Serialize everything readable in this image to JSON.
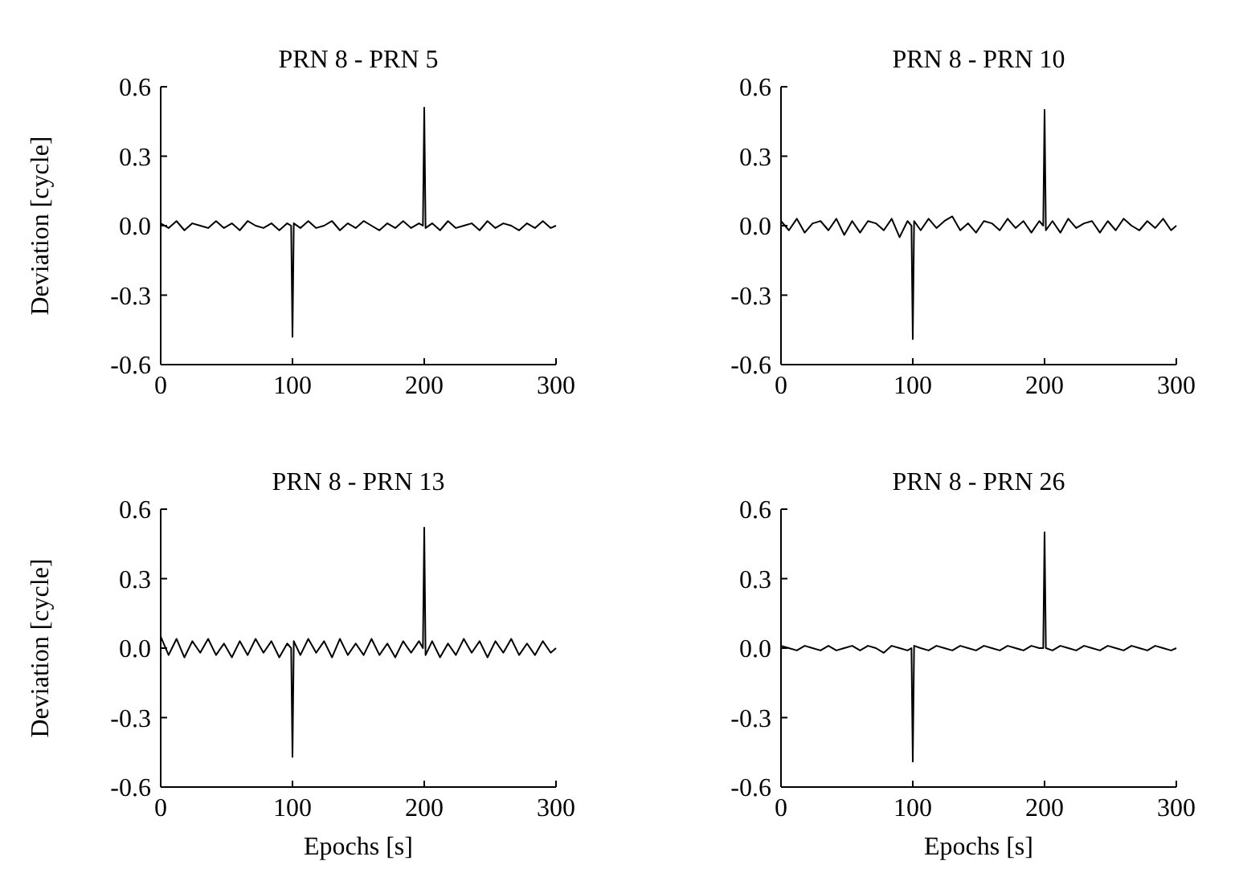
{
  "chart_data": [
    {
      "type": "line",
      "title": "PRN 8 - PRN 5",
      "ylabel": "Deviation [cycle]",
      "xlim": [
        0,
        300
      ],
      "xticks": [
        0,
        100,
        200,
        300
      ],
      "ylim": [
        -0.6,
        0.6
      ],
      "yticks": [
        {
          "value": -0.6,
          "label": "-0.6"
        },
        {
          "value": -0.3,
          "label": "-0.3"
        },
        {
          "value": 0,
          "label": "0.0"
        },
        {
          "value": 0.3,
          "label": "0.3"
        },
        {
          "value": 0.6,
          "label": "0.6"
        }
      ],
      "marker": "none",
      "line_style": "solid",
      "x": [
        0,
        6,
        12,
        18,
        24,
        30,
        36,
        42,
        48,
        54,
        60,
        66,
        72,
        78,
        84,
        90,
        96,
        99,
        100,
        101,
        106,
        112,
        118,
        124,
        130,
        136,
        142,
        148,
        154,
        160,
        166,
        172,
        178,
        184,
        190,
        196,
        199,
        200,
        201,
        206,
        212,
        218,
        224,
        230,
        236,
        242,
        248,
        254,
        260,
        266,
        272,
        278,
        284,
        290,
        296,
        300
      ],
      "series": [
        {
          "color": "#000000",
          "values": [
            0.01,
            -0.01,
            0.02,
            -0.02,
            0.01,
            0.0,
            -0.01,
            0.02,
            -0.01,
            0.01,
            -0.02,
            0.02,
            0.0,
            -0.01,
            0.01,
            -0.02,
            0.01,
            0.0,
            -0.48,
            0.01,
            -0.01,
            0.02,
            -0.01,
            0.0,
            0.02,
            -0.02,
            0.01,
            -0.01,
            0.02,
            0.0,
            -0.02,
            0.01,
            -0.01,
            0.02,
            -0.01,
            0.01,
            0.0,
            0.51,
            -0.01,
            0.01,
            -0.02,
            0.02,
            -0.01,
            0.0,
            0.01,
            -0.02,
            0.02,
            -0.01,
            0.01,
            0.0,
            -0.02,
            0.01,
            -0.01,
            0.02,
            -0.01,
            0.0
          ]
        }
      ]
    },
    {
      "type": "line",
      "title": "PRN 8 - PRN 10",
      "xlim": [
        0,
        300
      ],
      "xticks": [
        0,
        100,
        200,
        300
      ],
      "ylim": [
        -0.6,
        0.6
      ],
      "yticks": [
        {
          "value": -0.6,
          "label": "-0.6"
        },
        {
          "value": -0.3,
          "label": "-0.3"
        },
        {
          "value": 0,
          "label": "0.0"
        },
        {
          "value": 0.3,
          "label": "0.3"
        },
        {
          "value": 0.6,
          "label": "0.6"
        }
      ],
      "marker": "none",
      "line_style": "solid",
      "x": [
        0,
        6,
        12,
        18,
        24,
        30,
        36,
        42,
        48,
        54,
        60,
        66,
        72,
        78,
        84,
        90,
        96,
        99,
        100,
        101,
        106,
        112,
        118,
        124,
        130,
        136,
        142,
        148,
        154,
        160,
        166,
        172,
        178,
        184,
        190,
        196,
        199,
        200,
        201,
        206,
        212,
        218,
        224,
        230,
        236,
        242,
        248,
        254,
        260,
        266,
        272,
        278,
        284,
        290,
        296,
        300
      ],
      "series": [
        {
          "color": "#000000",
          "values": [
            0.02,
            -0.02,
            0.03,
            -0.03,
            0.01,
            0.02,
            -0.02,
            0.03,
            -0.04,
            0.02,
            -0.03,
            0.02,
            0.01,
            -0.02,
            0.03,
            -0.05,
            0.02,
            0.0,
            -0.49,
            0.02,
            -0.02,
            0.03,
            -0.01,
            0.02,
            0.04,
            -0.02,
            0.01,
            -0.03,
            0.02,
            0.01,
            -0.02,
            0.03,
            -0.01,
            0.02,
            -0.03,
            0.02,
            0.0,
            0.5,
            -0.02,
            0.02,
            -0.03,
            0.03,
            -0.01,
            0.01,
            0.02,
            -0.03,
            0.02,
            -0.02,
            0.03,
            0.0,
            -0.02,
            0.02,
            -0.01,
            0.03,
            -0.02,
            0.0
          ]
        }
      ]
    },
    {
      "type": "line",
      "title": "PRN 8 - PRN 13",
      "xlabel": "Epochs [s]",
      "ylabel": "Deviation [cycle]",
      "xlim": [
        0,
        300
      ],
      "xticks": [
        0,
        100,
        200,
        300
      ],
      "ylim": [
        -0.6,
        0.6
      ],
      "yticks": [
        {
          "value": -0.6,
          "label": "-0.6"
        },
        {
          "value": -0.3,
          "label": "-0.3"
        },
        {
          "value": 0,
          "label": "0.0"
        },
        {
          "value": 0.3,
          "label": "0.3"
        },
        {
          "value": 0.6,
          "label": "0.6"
        }
      ],
      "marker": "none",
      "line_style": "solid",
      "x": [
        0,
        6,
        12,
        18,
        24,
        30,
        36,
        42,
        48,
        54,
        60,
        66,
        72,
        78,
        84,
        90,
        96,
        99,
        100,
        101,
        106,
        112,
        118,
        124,
        130,
        136,
        142,
        148,
        154,
        160,
        166,
        172,
        178,
        184,
        190,
        196,
        199,
        200,
        201,
        206,
        212,
        218,
        224,
        230,
        236,
        242,
        248,
        254,
        260,
        266,
        272,
        278,
        284,
        290,
        296,
        300
      ],
      "series": [
        {
          "color": "#000000",
          "values": [
            0.05,
            -0.03,
            0.04,
            -0.04,
            0.03,
            -0.02,
            0.04,
            -0.03,
            0.02,
            -0.04,
            0.03,
            -0.03,
            0.04,
            -0.02,
            0.03,
            -0.04,
            0.02,
            0.0,
            -0.47,
            0.03,
            -0.03,
            0.04,
            -0.02,
            0.03,
            -0.04,
            0.04,
            -0.03,
            0.02,
            -0.03,
            0.04,
            -0.03,
            0.02,
            -0.04,
            0.03,
            -0.02,
            0.03,
            0.0,
            0.52,
            -0.03,
            0.03,
            -0.04,
            0.02,
            -0.03,
            0.04,
            -0.02,
            0.03,
            -0.04,
            0.03,
            -0.02,
            0.04,
            -0.03,
            0.02,
            -0.03,
            0.03,
            -0.02,
            0.0
          ]
        }
      ]
    },
    {
      "type": "line",
      "title": "PRN 8 - PRN 26",
      "xlabel": "Epochs [s]",
      "xlim": [
        0,
        300
      ],
      "xticks": [
        0,
        100,
        200,
        300
      ],
      "ylim": [
        -0.6,
        0.6
      ],
      "yticks": [
        {
          "value": -0.6,
          "label": "-0.6"
        },
        {
          "value": -0.3,
          "label": "-0.3"
        },
        {
          "value": 0,
          "label": "0.0"
        },
        {
          "value": 0.3,
          "label": "0.3"
        },
        {
          "value": 0.6,
          "label": "0.6"
        }
      ],
      "marker": "none",
      "line_style": "solid",
      "x": [
        0,
        6,
        12,
        18,
        24,
        30,
        36,
        42,
        48,
        54,
        60,
        66,
        72,
        78,
        84,
        90,
        96,
        99,
        100,
        101,
        106,
        112,
        118,
        124,
        130,
        136,
        142,
        148,
        154,
        160,
        166,
        172,
        178,
        184,
        190,
        196,
        199,
        200,
        201,
        206,
        212,
        218,
        224,
        230,
        236,
        242,
        248,
        254,
        260,
        266,
        272,
        278,
        284,
        290,
        296,
        300
      ],
      "series": [
        {
          "color": "#000000",
          "values": [
            0.01,
            0.0,
            -0.01,
            0.01,
            0.0,
            -0.01,
            0.01,
            -0.01,
            0.0,
            0.01,
            -0.01,
            0.01,
            0.0,
            -0.02,
            0.01,
            0.0,
            -0.01,
            0.0,
            -0.49,
            0.01,
            0.0,
            -0.01,
            0.01,
            0.0,
            -0.01,
            0.01,
            0.0,
            -0.01,
            0.01,
            0.0,
            -0.01,
            0.01,
            0.0,
            -0.01,
            0.01,
            0.0,
            0.0,
            0.5,
            0.0,
            -0.01,
            0.01,
            0.0,
            -0.01,
            0.01,
            0.0,
            -0.01,
            0.01,
            0.0,
            -0.01,
            0.01,
            0.0,
            -0.01,
            0.01,
            0.0,
            -0.01,
            0.0
          ]
        }
      ]
    }
  ]
}
